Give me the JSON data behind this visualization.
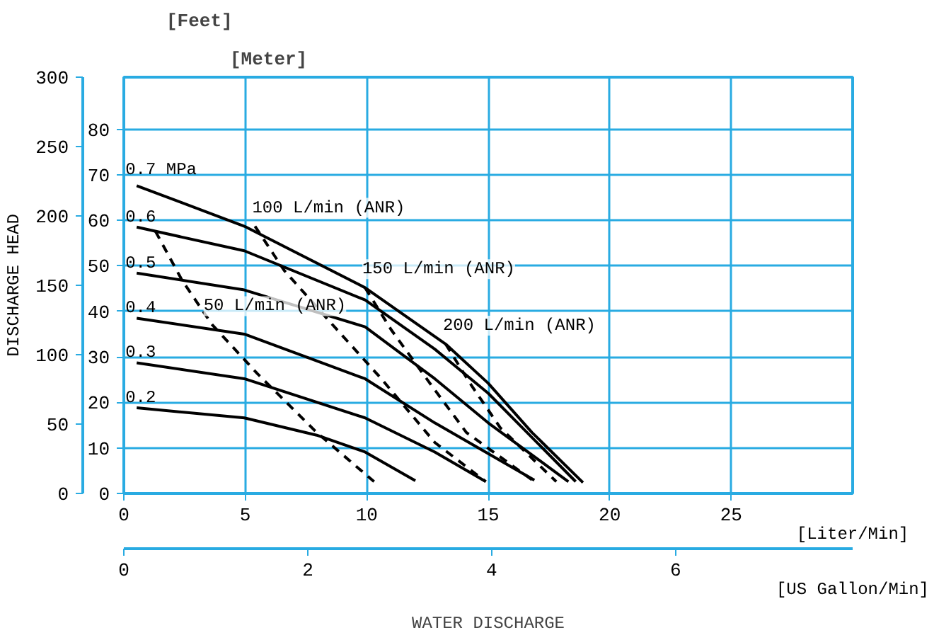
{
  "chart_data": {
    "type": "line",
    "xlabel": "[Liter/Min]",
    "x2label": "[US Gallon/Min]",
    "ylabel": "DISCHARGE HEAD",
    "y2label": "[Meter]",
    "xlim": [
      0,
      30
    ],
    "xticks": [
      0,
      5,
      10,
      15,
      20,
      25
    ],
    "x2lim": [
      0,
      7.925
    ],
    "x2ticks": [
      0,
      2,
      4,
      6
    ],
    "ylim": [
      0,
      300
    ],
    "yticks": [
      0,
      50,
      100,
      150,
      200,
      250,
      300
    ],
    "y2lim": [
      0,
      91.44
    ],
    "y2ticks": [
      0,
      10,
      20,
      30,
      40,
      50,
      60,
      70,
      80
    ],
    "grid": true,
    "marker": "none",
    "line_style": "solid",
    "series": [
      {
        "name": "0.7 MPa",
        "axis": "y2",
        "color": "#000000",
        "x": [
          0.53,
          4.96,
          9.93,
          13.25,
          15.0,
          16.8,
          18.9
        ],
        "values": [
          67.6,
          58.7,
          45.2,
          32.8,
          24.2,
          13.4,
          2.4
        ]
      },
      {
        "name": "0.6",
        "axis": "y2",
        "color": "#000000",
        "x": [
          0.53,
          4.96,
          9.93,
          12.8,
          15.0,
          18.6
        ],
        "values": [
          58.5,
          53.3,
          42.5,
          31.7,
          22.0,
          2.6
        ]
      },
      {
        "name": "0.5",
        "axis": "y2",
        "color": "#000000",
        "x": [
          0.53,
          4.96,
          9.93,
          12.8,
          15.0,
          18.3
        ],
        "values": [
          48.4,
          44.7,
          36.6,
          25.2,
          15.5,
          2.6
        ]
      },
      {
        "name": "0.4",
        "axis": "y2",
        "color": "#000000",
        "x": [
          0.53,
          4.96,
          9.93,
          12.8,
          16.9
        ],
        "values": [
          38.5,
          35.0,
          25.2,
          15.5,
          2.9
        ]
      },
      {
        "name": "0.3",
        "axis": "y2",
        "color": "#000000",
        "x": [
          0.53,
          4.96,
          9.93,
          12.8,
          14.9
        ],
        "values": [
          28.7,
          25.2,
          16.6,
          9.1,
          2.6
        ]
      },
      {
        "name": "0.2",
        "axis": "y2",
        "color": "#000000",
        "x": [
          0.53,
          4.96,
          7.94,
          9.93,
          12.0
        ],
        "values": [
          18.8,
          16.6,
          12.8,
          9.1,
          2.8
        ]
      },
      {
        "name": "50 L/min (ANR)",
        "axis": "y2",
        "color": "#000000",
        "line_style": "dashed",
        "x": [
          1.3,
          2.4,
          3.63,
          5.5,
          7.94,
          10.3
        ],
        "values": [
          57.6,
          46.8,
          37.1,
          26.3,
          13.4,
          2.6
        ]
      },
      {
        "name": "100 L/min (ANR)",
        "axis": "y2",
        "color": "#000000",
        "line_style": "dashed",
        "x": [
          5.4,
          6.6,
          8.4,
          10.6,
          12.8,
          14.9
        ],
        "values": [
          58.7,
          49.0,
          38.2,
          25.2,
          11.2,
          2.6
        ]
      },
      {
        "name": "150 L/min (ANR)",
        "axis": "y2",
        "color": "#000000",
        "line_style": "dashed",
        "x": [
          9.93,
          11.0,
          12.6,
          14.1,
          16.9
        ],
        "values": [
          45.2,
          36.0,
          24.2,
          13.4,
          2.6
        ]
      },
      {
        "name": "200 L/min (ANR)",
        "axis": "y2",
        "color": "#000000",
        "line_style": "dashed",
        "x": [
          13.25,
          14.25,
          15.5,
          17.8
        ],
        "values": [
          32.8,
          24.2,
          14.4,
          2.6
        ]
      }
    ],
    "annotations": [
      "[Feet]",
      "WATER DISCHARGE"
    ]
  }
}
